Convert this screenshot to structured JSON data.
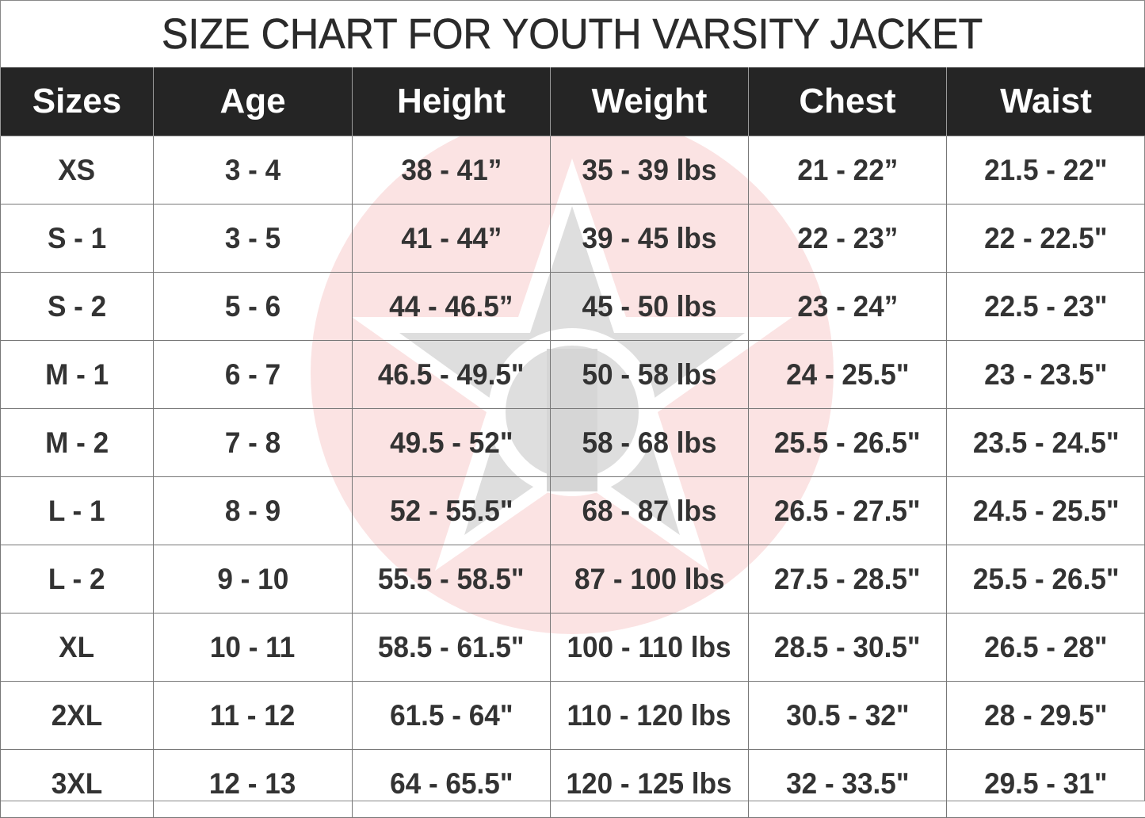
{
  "title": "SIZE CHART FOR YOUTH VARSITY JACKET",
  "colors": {
    "header_bg": "#252525",
    "header_text": "#ffffff",
    "cell_text": "#333333",
    "watermark_circle": "#fbe3e3",
    "watermark_figure": "#dcdcdc"
  },
  "watermark": {
    "icon": "star-logo-watermark"
  },
  "table": {
    "headers": [
      "Sizes",
      "Age",
      "Height",
      "Weight",
      "Chest",
      "Waist"
    ],
    "rows": [
      [
        "XS",
        "3 - 4",
        "38 - 41”",
        "35 - 39 lbs",
        "21 - 22”",
        "21.5 - 22\""
      ],
      [
        "S - 1",
        "3 - 5",
        "41 - 44”",
        "39 - 45 lbs",
        "22 - 23”",
        "22 - 22.5\""
      ],
      [
        "S - 2",
        "5 - 6",
        "44 - 46.5”",
        "45 - 50 lbs",
        "23 - 24”",
        "22.5 - 23\""
      ],
      [
        "M - 1",
        "6 - 7",
        "46.5 - 49.5\"",
        "50 - 58 lbs",
        "24 - 25.5\"",
        "23 - 23.5\""
      ],
      [
        "M - 2",
        "7 - 8",
        "49.5 - 52\"",
        "58 - 68 lbs",
        "25.5 - 26.5\"",
        "23.5 - 24.5\""
      ],
      [
        "L - 1",
        "8 - 9",
        "52 - 55.5\"",
        "68 - 87 lbs",
        "26.5 - 27.5\"",
        "24.5 - 25.5\""
      ],
      [
        "L - 2",
        "9 - 10",
        "55.5 - 58.5\"",
        "87 - 100 lbs",
        "27.5 - 28.5\"",
        "25.5 - 26.5\""
      ],
      [
        "XL",
        "10 - 11",
        "58.5 - 61.5\"",
        "100 - 110 lbs",
        "28.5 - 30.5\"",
        "26.5 - 28\""
      ],
      [
        "2XL",
        "11 - 12",
        "61.5 - 64\"",
        "110 - 120 lbs",
        "30.5 - 32\"",
        "28 - 29.5\""
      ],
      [
        "3XL",
        "12 - 13",
        "64 - 65.5\"",
        "120 - 125 lbs",
        "32 - 33.5\"",
        "29.5 - 31\""
      ]
    ]
  }
}
